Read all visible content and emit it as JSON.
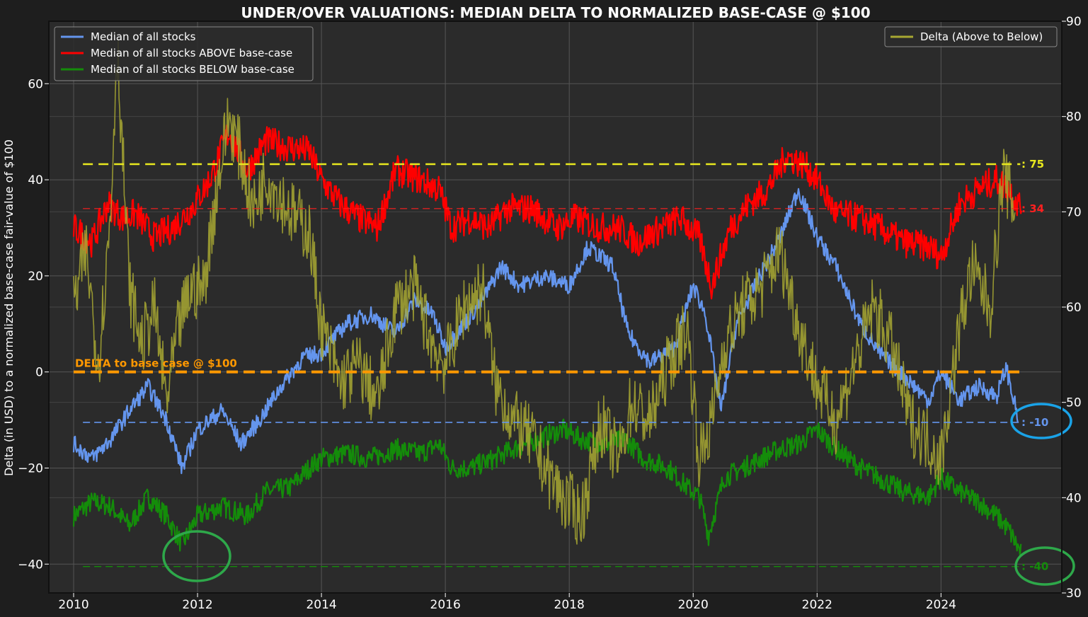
{
  "chart_data": {
    "type": "line",
    "title": "UNDER/OVER VALUATIONS: MEDIAN DELTA TO NORMALIZED BASE-CASE @ $100",
    "ylabel": "Delta (in USD) to a normalized base-case fair-value of $100",
    "xlim": [
      2009.6,
      2025.95
    ],
    "ylim": [
      -46,
      73
    ],
    "y2lim": [
      30,
      90
    ],
    "x_ticks": [
      2010,
      2012,
      2014,
      2016,
      2018,
      2020,
      2022,
      2024
    ],
    "y_ticks": [
      -40,
      -20,
      0,
      20,
      40,
      60
    ],
    "y2_ticks": [
      30,
      40,
      50,
      60,
      70,
      80,
      90
    ],
    "grid": true,
    "legend_left": [
      "Median of all stocks",
      "Median of all stocks ABOVE base-case",
      "Median of all stocks BELOW base-case"
    ],
    "legend_right": [
      "Delta (Above to Below)"
    ],
    "colors": {
      "median": "#6495ed",
      "above": "#ff0000",
      "below": "#148c0a",
      "delta": "#a8a832",
      "base": "#ff9800",
      "ref75": "#e8e81e",
      "circle_blue": "#1aa3e8",
      "circle_green": "#2ea84a"
    },
    "series": [
      {
        "name": "Median of all stocks",
        "axis": "left",
        "x": [
          2010.0,
          2010.3,
          2010.6,
          2010.9,
          2011.2,
          2011.5,
          2011.75,
          2012.0,
          2012.4,
          2012.7,
          2013.0,
          2013.4,
          2013.7,
          2014.0,
          2014.4,
          2014.8,
          2015.2,
          2015.5,
          2015.8,
          2016.0,
          2016.3,
          2016.6,
          2016.9,
          2017.2,
          2017.6,
          2018.0,
          2018.3,
          2018.7,
          2018.95,
          2019.3,
          2019.7,
          2020.0,
          2020.2,
          2020.45,
          2020.7,
          2021.0,
          2021.4,
          2021.7,
          2022.0,
          2022.3,
          2022.7,
          2023.0,
          2023.5,
          2023.8,
          2024.0,
          2024.3,
          2024.6,
          2024.9,
          2025.05,
          2025.25
        ],
        "values": [
          -15,
          -18,
          -14,
          -8,
          -3,
          -10,
          -20,
          -12,
          -8,
          -15,
          -10,
          -2,
          3,
          4,
          10,
          12,
          8,
          15,
          12,
          5,
          10,
          15,
          22,
          18,
          20,
          18,
          26,
          22,
          8,
          2,
          5,
          18,
          12,
          -8,
          10,
          18,
          28,
          38,
          28,
          22,
          10,
          4,
          -2,
          -6,
          0,
          -6,
          -3,
          -5,
          1,
          -10
        ]
      },
      {
        "name": "Median of all stocks ABOVE base-case",
        "axis": "left",
        "x": [
          2010.0,
          2010.3,
          2010.55,
          2010.8,
          2011.0,
          2011.3,
          2011.6,
          2011.9,
          2012.2,
          2012.5,
          2012.8,
          2013.1,
          2013.4,
          2013.8,
          2014.0,
          2014.3,
          2014.6,
          2014.9,
          2015.2,
          2015.6,
          2015.9,
          2016.1,
          2016.4,
          2016.7,
          2017.0,
          2017.4,
          2017.8,
          2018.1,
          2018.5,
          2018.8,
          2019.1,
          2019.5,
          2019.8,
          2020.1,
          2020.3,
          2020.6,
          2020.9,
          2021.2,
          2021.5,
          2021.8,
          2022.0,
          2022.3,
          2022.7,
          2023.0,
          2023.4,
          2023.8,
          2024.0,
          2024.3,
          2024.6,
          2024.9,
          2025.1,
          2025.3
        ],
        "values": [
          30,
          27,
          35,
          32,
          33,
          28,
          30,
          34,
          40,
          50,
          42,
          48,
          47,
          46,
          40,
          35,
          32,
          30,
          42,
          40,
          38,
          30,
          32,
          30,
          34,
          34,
          30,
          32,
          30,
          30,
          27,
          30,
          32,
          28,
          18,
          30,
          35,
          38,
          45,
          43,
          40,
          33,
          32,
          30,
          27,
          26,
          24,
          35,
          38,
          40,
          38,
          34
        ]
      },
      {
        "name": "Median of all stocks BELOW base-case",
        "axis": "left",
        "x": [
          2010.0,
          2010.3,
          2010.6,
          2010.9,
          2011.2,
          2011.5,
          2011.75,
          2012.0,
          2012.4,
          2012.8,
          2013.1,
          2013.5,
          2013.8,
          2014.0,
          2014.4,
          2014.8,
          2015.2,
          2015.6,
          2015.9,
          2016.1,
          2016.4,
          2016.8,
          2017.1,
          2017.5,
          2017.9,
          2018.2,
          2018.6,
          2018.9,
          2019.2,
          2019.6,
          2019.9,
          2020.1,
          2020.25,
          2020.5,
          2020.8,
          2021.1,
          2021.4,
          2021.7,
          2022.0,
          2022.3,
          2022.7,
          2023.0,
          2023.4,
          2023.8,
          2024.0,
          2024.3,
          2024.6,
          2024.9,
          2025.1,
          2025.3
        ],
        "values": [
          -30,
          -27,
          -28,
          -32,
          -26,
          -30,
          -36,
          -30,
          -28,
          -30,
          -25,
          -24,
          -20,
          -18,
          -17,
          -18,
          -16,
          -17,
          -15,
          -20,
          -20,
          -18,
          -16,
          -14,
          -12,
          -14,
          -15,
          -14,
          -18,
          -20,
          -24,
          -26,
          -34,
          -22,
          -20,
          -18,
          -16,
          -15,
          -12,
          -16,
          -20,
          -22,
          -25,
          -26,
          -22,
          -25,
          -27,
          -30,
          -33,
          -38
        ]
      },
      {
        "name": "Delta (Above to Below)",
        "axis": "right",
        "x": [
          2010.0,
          2010.2,
          2010.4,
          2010.6,
          2010.7,
          2010.9,
          2011.1,
          2011.3,
          2011.5,
          2011.7,
          2011.9,
          2012.1,
          2012.3,
          2012.5,
          2012.7,
          2012.9,
          2013.1,
          2013.3,
          2013.5,
          2013.8,
          2014.0,
          2014.3,
          2014.6,
          2014.9,
          2015.2,
          2015.5,
          2015.8,
          2016.0,
          2016.3,
          2016.6,
          2016.8,
          2017.1,
          2017.4,
          2017.7,
          2017.9,
          2018.2,
          2018.5,
          2018.8,
          2019.0,
          2019.3,
          2019.6,
          2019.9,
          2020.1,
          2020.3,
          2020.5,
          2020.8,
          2021.1,
          2021.4,
          2021.7,
          2022.0,
          2022.3,
          2022.6,
          2022.9,
          2023.2,
          2023.5,
          2023.8,
          2024.0,
          2024.3,
          2024.5,
          2024.8,
          2025.0,
          2025.2
        ],
        "values": [
          60,
          66,
          54,
          70,
          88,
          62,
          56,
          60,
          50,
          58,
          62,
          62,
          72,
          80,
          76,
          70,
          74,
          72,
          70,
          68,
          58,
          52,
          54,
          50,
          60,
          62,
          56,
          54,
          60,
          62,
          52,
          48,
          46,
          42,
          40,
          38,
          48,
          44,
          50,
          48,
          54,
          58,
          44,
          48,
          56,
          60,
          62,
          66,
          58,
          52,
          48,
          54,
          60,
          56,
          48,
          46,
          44,
          58,
          64,
          60,
          74,
          70
        ]
      }
    ],
    "reference_lines": [
      {
        "label": ": 75",
        "axis": "right",
        "value": 75
      },
      {
        "label": ": 34",
        "axis": "left",
        "value": 34
      },
      {
        "label": ": -10",
        "axis": "left",
        "value": -10.5
      },
      {
        "label": ": -40",
        "axis": "left",
        "value": -40.5
      },
      {
        "label": "DELTA to base case @ $100",
        "axis": "left",
        "value": 0
      }
    ]
  }
}
